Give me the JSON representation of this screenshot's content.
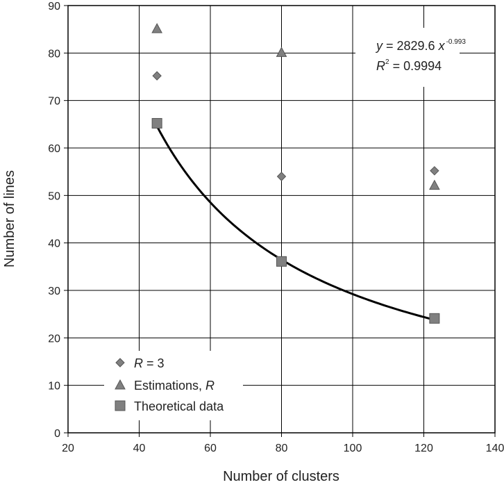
{
  "chart_data": {
    "type": "scatter",
    "title": "",
    "xlabel": "Number of clusters",
    "ylabel": "Number of lines",
    "xlim": [
      20,
      140
    ],
    "ylim": [
      0,
      90
    ],
    "x_ticks": [
      "20",
      "40",
      "60",
      "80",
      "100",
      "120",
      "140"
    ],
    "y_ticks": [
      "0",
      "10",
      "20",
      "30",
      "40",
      "50",
      "60",
      "70",
      "80",
      "90"
    ],
    "grid": true,
    "legend_position": "bottom-left",
    "series": [
      {
        "name_parts": [
          "R",
          " = 3"
        ],
        "marker": "diamond",
        "color": "#808080",
        "points": [
          [
            45,
            75.2
          ],
          [
            80,
            54
          ],
          [
            123,
            55.2
          ]
        ]
      },
      {
        "name_parts": [
          "Estimations, ",
          "R"
        ],
        "marker": "triangle",
        "color": "#808080",
        "points": [
          [
            45,
            85
          ],
          [
            80,
            80
          ],
          [
            123,
            52
          ]
        ]
      },
      {
        "name_parts": [
          "Theoretical data",
          ""
        ],
        "marker": "square",
        "color": "#808080",
        "points": [
          [
            45,
            65.2
          ],
          [
            80,
            36.1
          ],
          [
            123,
            24.1
          ]
        ]
      }
    ],
    "trendline": {
      "type": "power",
      "coefficient": 2829.6,
      "exponent": -0.993,
      "x_range": [
        45,
        123
      ],
      "color": "#000000"
    },
    "annotation": {
      "eq_y": "y",
      "eq_mid": " = 2829.6 ",
      "eq_x": "x",
      "eq_exp": "-0.993",
      "r2_r": "R",
      "r2_sup": "2",
      "r2_val": " = 0.9994"
    }
  }
}
